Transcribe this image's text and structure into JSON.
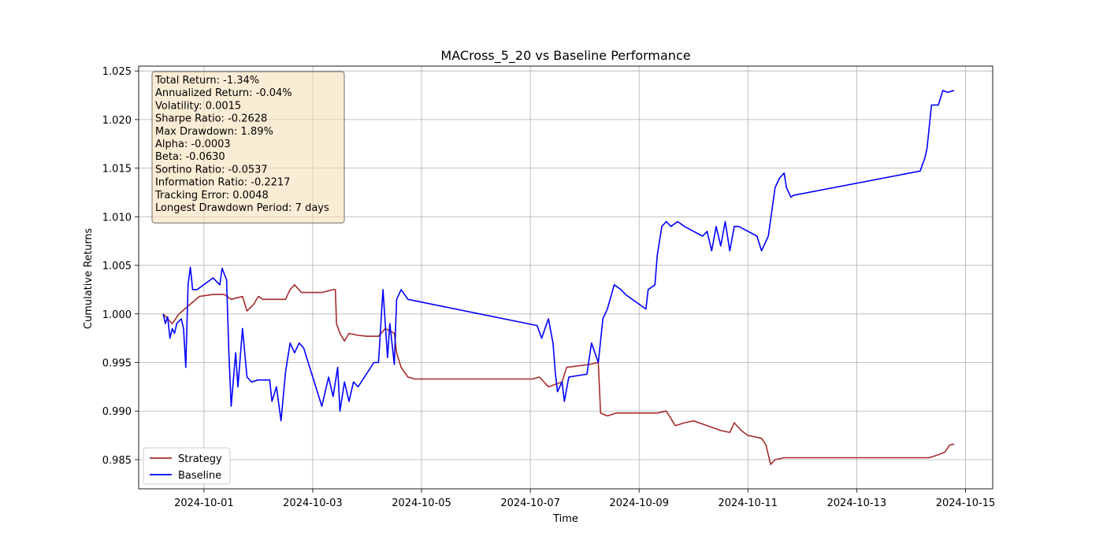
{
  "chart_data": {
    "type": "line",
    "title": "MACross_5_20 vs Baseline Performance",
    "xlabel": "Time",
    "ylabel": "Cumulative Returns",
    "ylim": [
      0.982,
      1.0255
    ],
    "xlim": [
      "2024-09-29T19:12:00",
      "2024-10-15T12:00:00"
    ],
    "grid": true,
    "legend_position": "lower-left",
    "x_ticks": [
      "2024-10-01",
      "2024-10-03",
      "2024-10-05",
      "2024-10-07",
      "2024-10-09",
      "2024-10-11",
      "2024-10-13",
      "2024-10-15"
    ],
    "y_ticks": [
      0.985,
      0.99,
      0.995,
      1.0,
      1.005,
      1.01,
      1.015,
      1.02,
      1.025
    ],
    "stats": [
      "Total Return: -1.34%",
      "Annualized Return: -0.04%",
      "Volatility: 0.0015",
      "Sharpe Ratio: -0.2628",
      "Max Drawdown: 1.89%",
      "Alpha: -0.0003",
      "Beta: -0.0630",
      "Sortino Ratio: -0.0537",
      "Information Ratio: -0.2217",
      "Tracking Error: 0.0048",
      "Longest Drawdown Period: 7 days"
    ],
    "series": [
      {
        "name": "Strategy",
        "color": "#a52a2a",
        "points": [
          [
            "2024-09-30T06:00",
            1.0
          ],
          [
            "2024-09-30T08:00",
            0.9995
          ],
          [
            "2024-09-30T10:00",
            0.999
          ],
          [
            "2024-09-30T13:00",
            1.0
          ],
          [
            "2024-09-30T18:00",
            1.001
          ],
          [
            "2024-09-30T22:00",
            1.0018
          ],
          [
            "2024-10-01T04:00",
            1.002
          ],
          [
            "2024-10-01T09:00",
            1.002
          ],
          [
            "2024-10-01T12:00",
            1.0015
          ],
          [
            "2024-10-01T17:00",
            1.0018
          ],
          [
            "2024-10-01T19:00",
            1.0003
          ],
          [
            "2024-10-01T22:00",
            1.001
          ],
          [
            "2024-10-02T00:00",
            1.0018
          ],
          [
            "2024-10-02T02:00",
            1.0015
          ],
          [
            "2024-10-02T06:00",
            1.0015
          ],
          [
            "2024-10-02T12:00",
            1.0015
          ],
          [
            "2024-10-02T14:00",
            1.0025
          ],
          [
            "2024-10-02T16:00",
            1.003
          ],
          [
            "2024-10-02T19:00",
            1.0022
          ],
          [
            "2024-10-02T22:00",
            1.0022
          ],
          [
            "2024-10-03T04:00",
            1.0022
          ],
          [
            "2024-10-03T09:00",
            1.0025
          ],
          [
            "2024-10-03T10:00",
            1.0025
          ],
          [
            "2024-10-03T10:30",
            0.999
          ],
          [
            "2024-10-03T12:00",
            0.998
          ],
          [
            "2024-10-03T14:00",
            0.9972
          ],
          [
            "2024-10-03T16:00",
            0.998
          ],
          [
            "2024-10-03T20:00",
            0.9978
          ],
          [
            "2024-10-04T00:00",
            0.9977
          ],
          [
            "2024-10-04T05:00",
            0.9977
          ],
          [
            "2024-10-04T08:00",
            0.9985
          ],
          [
            "2024-10-04T12:00",
            0.998
          ],
          [
            "2024-10-04T13:00",
            0.996
          ],
          [
            "2024-10-04T15:00",
            0.9945
          ],
          [
            "2024-10-04T18:00",
            0.9935
          ],
          [
            "2024-10-04T21:00",
            0.9933
          ],
          [
            "2024-10-05T12:00",
            0.9933
          ],
          [
            "2024-10-07T01:00",
            0.9933
          ],
          [
            "2024-10-07T04:00",
            0.9935
          ],
          [
            "2024-10-07T08:00",
            0.9925
          ],
          [
            "2024-10-07T14:00",
            0.993
          ],
          [
            "2024-10-07T16:00",
            0.9945
          ],
          [
            "2024-10-08T02:00",
            0.9948
          ],
          [
            "2024-10-08T06:00",
            0.995
          ],
          [
            "2024-10-08T07:00",
            0.9898
          ],
          [
            "2024-10-08T10:00",
            0.9895
          ],
          [
            "2024-10-08T14:00",
            0.9898
          ],
          [
            "2024-10-08T20:00",
            0.9898
          ],
          [
            "2024-10-09T08:00",
            0.9898
          ],
          [
            "2024-10-09T12:00",
            0.99
          ],
          [
            "2024-10-09T16:00",
            0.9885
          ],
          [
            "2024-10-09T20:00",
            0.9888
          ],
          [
            "2024-10-10T00:00",
            0.989
          ],
          [
            "2024-10-10T06:00",
            0.9885
          ],
          [
            "2024-10-10T12:00",
            0.988
          ],
          [
            "2024-10-10T16:00",
            0.9878
          ],
          [
            "2024-10-10T18:00",
            0.9888
          ],
          [
            "2024-10-10T21:00",
            0.988
          ],
          [
            "2024-10-11T00:00",
            0.9875
          ],
          [
            "2024-10-11T06:00",
            0.9872
          ],
          [
            "2024-10-11T08:00",
            0.9865
          ],
          [
            "2024-10-11T10:00",
            0.9845
          ],
          [
            "2024-10-11T12:00",
            0.985
          ],
          [
            "2024-10-11T16:00",
            0.9852
          ],
          [
            "2024-10-11T19:00",
            0.9852
          ],
          [
            "2024-10-12T08:00",
            0.9852
          ],
          [
            "2024-10-13T08:00",
            0.9852
          ],
          [
            "2024-10-14T05:00",
            0.9852
          ],
          [
            "2024-10-14T08:00",
            0.9852
          ],
          [
            "2024-10-14T12:00",
            0.9855
          ],
          [
            "2024-10-14T15:00",
            0.9858
          ],
          [
            "2024-10-14T17:00",
            0.9865
          ],
          [
            "2024-10-14T19:00",
            0.9866
          ]
        ]
      },
      {
        "name": "Baseline",
        "color": "#0000ff",
        "points": [
          [
            "2024-09-30T06:00",
            1.0
          ],
          [
            "2024-09-30T07:00",
            0.999
          ],
          [
            "2024-09-30T08:00",
            0.9997
          ],
          [
            "2024-09-30T09:00",
            0.9975
          ],
          [
            "2024-09-30T10:00",
            0.9985
          ],
          [
            "2024-09-30T11:00",
            0.998
          ],
          [
            "2024-09-30T12:00",
            0.999
          ],
          [
            "2024-09-30T14:00",
            0.9995
          ],
          [
            "2024-09-30T15:00",
            0.9985
          ],
          [
            "2024-09-30T16:00",
            0.9945
          ],
          [
            "2024-09-30T17:00",
            1.003
          ],
          [
            "2024-09-30T18:00",
            1.0048
          ],
          [
            "2024-09-30T19:00",
            1.0025
          ],
          [
            "2024-09-30T21:00",
            1.0025
          ],
          [
            "2024-10-01T04:00",
            1.0037
          ],
          [
            "2024-10-01T07:00",
            1.003
          ],
          [
            "2024-10-01T08:00",
            1.0047
          ],
          [
            "2024-10-01T10:00",
            1.0035
          ],
          [
            "2024-10-01T11:00",
            0.996
          ],
          [
            "2024-10-01T12:00",
            0.9905
          ],
          [
            "2024-10-01T14:00",
            0.996
          ],
          [
            "2024-10-01T15:00",
            0.9925
          ],
          [
            "2024-10-01T17:00",
            0.9985
          ],
          [
            "2024-10-01T19:00",
            0.9935
          ],
          [
            "2024-10-01T21:00",
            0.993
          ],
          [
            "2024-10-02T00:00",
            0.9932
          ],
          [
            "2024-10-02T05:00",
            0.9932
          ],
          [
            "2024-10-02T06:00",
            0.991
          ],
          [
            "2024-10-02T08:00",
            0.9925
          ],
          [
            "2024-10-02T10:00",
            0.989
          ],
          [
            "2024-10-02T12:00",
            0.994
          ],
          [
            "2024-10-02T14:00",
            0.997
          ],
          [
            "2024-10-02T16:00",
            0.996
          ],
          [
            "2024-10-02T18:00",
            0.997
          ],
          [
            "2024-10-02T20:00",
            0.9965
          ],
          [
            "2024-10-03T04:00",
            0.9905
          ],
          [
            "2024-10-03T07:00",
            0.9935
          ],
          [
            "2024-10-03T09:00",
            0.9915
          ],
          [
            "2024-10-03T11:00",
            0.9945
          ],
          [
            "2024-10-03T12:00",
            0.99
          ],
          [
            "2024-10-03T14:00",
            0.993
          ],
          [
            "2024-10-03T16:00",
            0.991
          ],
          [
            "2024-10-03T18:00",
            0.993
          ],
          [
            "2024-10-03T20:00",
            0.9925
          ],
          [
            "2024-10-04T03:00",
            0.995
          ],
          [
            "2024-10-04T05:00",
            0.995
          ],
          [
            "2024-10-04T07:00",
            1.0025
          ],
          [
            "2024-10-04T09:00",
            0.9955
          ],
          [
            "2024-10-04T10:00",
            0.999
          ],
          [
            "2024-10-04T12:00",
            0.9948
          ],
          [
            "2024-10-04T13:00",
            1.0015
          ],
          [
            "2024-10-04T15:00",
            1.0025
          ],
          [
            "2024-10-04T18:00",
            1.0015
          ],
          [
            "2024-10-07T03:00",
            0.9988
          ],
          [
            "2024-10-07T05:00",
            0.9975
          ],
          [
            "2024-10-07T08:00",
            0.9995
          ],
          [
            "2024-10-07T10:00",
            0.997
          ],
          [
            "2024-10-07T11:00",
            0.994
          ],
          [
            "2024-10-07T12:00",
            0.992
          ],
          [
            "2024-10-07T14:00",
            0.993
          ],
          [
            "2024-10-07T15:00",
            0.991
          ],
          [
            "2024-10-07T17:00",
            0.9935
          ],
          [
            "2024-10-08T01:00",
            0.9938
          ],
          [
            "2024-10-08T03:00",
            0.997
          ],
          [
            "2024-10-08T06:00",
            0.995
          ],
          [
            "2024-10-08T08:00",
            0.9995
          ],
          [
            "2024-10-08T10:00",
            1.0005
          ],
          [
            "2024-10-08T13:00",
            1.003
          ],
          [
            "2024-10-08T16:00",
            1.0025
          ],
          [
            "2024-10-08T18:00",
            1.002
          ],
          [
            "2024-10-09T03:00",
            1.0005
          ],
          [
            "2024-10-09T04:00",
            1.0025
          ],
          [
            "2024-10-09T07:00",
            1.003
          ],
          [
            "2024-10-09T08:00",
            1.006
          ],
          [
            "2024-10-09T10:00",
            1.009
          ],
          [
            "2024-10-09T12:00",
            1.0095
          ],
          [
            "2024-10-09T14:00",
            1.009
          ],
          [
            "2024-10-09T17:00",
            1.0095
          ],
          [
            "2024-10-09T20:00",
            1.009
          ],
          [
            "2024-10-10T04:00",
            1.008
          ],
          [
            "2024-10-10T06:00",
            1.0085
          ],
          [
            "2024-10-10T08:00",
            1.0065
          ],
          [
            "2024-10-10T10:00",
            1.009
          ],
          [
            "2024-10-10T12:00",
            1.007
          ],
          [
            "2024-10-10T14:00",
            1.0095
          ],
          [
            "2024-10-10T16:00",
            1.0065
          ],
          [
            "2024-10-10T18:00",
            1.009
          ],
          [
            "2024-10-10T20:00",
            1.009
          ],
          [
            "2024-10-11T04:00",
            1.008
          ],
          [
            "2024-10-11T06:00",
            1.0065
          ],
          [
            "2024-10-11T09:00",
            1.008
          ],
          [
            "2024-10-11T12:00",
            1.013
          ],
          [
            "2024-10-11T14:00",
            1.014
          ],
          [
            "2024-10-11T16:00",
            1.0145
          ],
          [
            "2024-10-11T17:00",
            1.013
          ],
          [
            "2024-10-11T19:00",
            1.012
          ],
          [
            "2024-10-11T20:00",
            1.0122
          ],
          [
            "2024-10-14T04:00",
            1.0147
          ],
          [
            "2024-10-14T06:00",
            1.016
          ],
          [
            "2024-10-14T07:00",
            1.017
          ],
          [
            "2024-10-14T09:00",
            1.0215
          ],
          [
            "2024-10-14T12:00",
            1.0215
          ],
          [
            "2024-10-14T14:00",
            1.023
          ],
          [
            "2024-10-14T16:00",
            1.0228
          ],
          [
            "2024-10-14T19:00",
            1.023
          ]
        ]
      }
    ]
  }
}
